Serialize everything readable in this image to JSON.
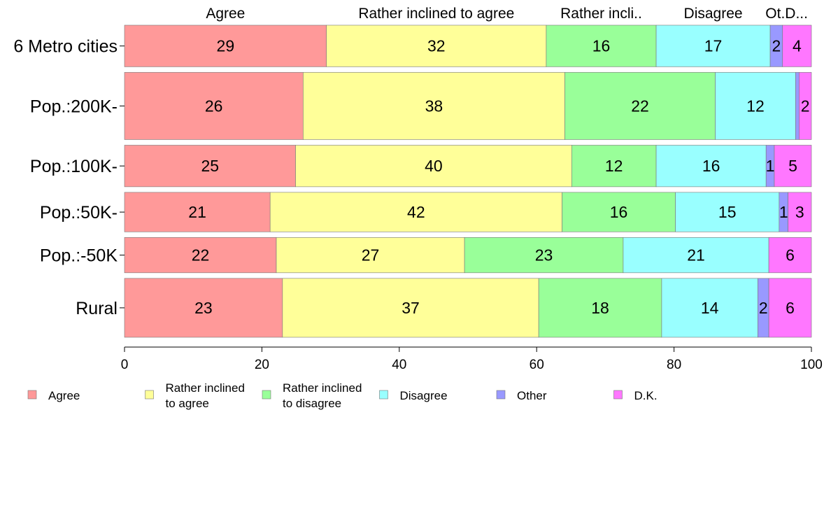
{
  "chart_data": {
    "type": "bar",
    "orientation": "horizontal",
    "stacked": true,
    "title": "",
    "xlabel": "",
    "ylabel": "",
    "xlim": [
      0,
      100
    ],
    "x_ticks": [
      0,
      20,
      40,
      60,
      80,
      100
    ],
    "grid": false,
    "legend_position": "bottom",
    "categories": [
      "6 Metro cities",
      "Pop.:200K-",
      "Pop.:100K-",
      "Pop.:50K-",
      "Pop.:-50K",
      "Rural"
    ],
    "bar_heights_relative": [
      0.6,
      0.97,
      0.6,
      0.57,
      0.51,
      0.85
    ],
    "top_labels": [
      "Agree",
      "Rather inclined to agree",
      "Rather incli..",
      "Disagree",
      "Ot.D..."
    ],
    "series": [
      {
        "name": "Agree",
        "legend_label": [
          "Agree"
        ],
        "color": "#ff9999",
        "values": [
          29.4,
          26.0,
          24.9,
          21.2,
          22.1,
          23.0
        ],
        "labels": [
          "29",
          "26",
          "25",
          "21",
          "22",
          "23"
        ]
      },
      {
        "name": "Rather inclined to agree",
        "legend_label": [
          "Rather inclined",
          "to agree"
        ],
        "color": "#ffff99",
        "values": [
          32.0,
          38.1,
          40.2,
          42.5,
          27.4,
          37.3
        ],
        "labels": [
          "32",
          "38",
          "40",
          "42",
          "27",
          "37"
        ]
      },
      {
        "name": "Rather inclined to disagree",
        "legend_label": [
          "Rather inclined",
          "to disagree"
        ],
        "color": "#99ff99",
        "values": [
          16.0,
          21.9,
          12.3,
          16.5,
          23.1,
          17.9
        ],
        "labels": [
          "16",
          "22",
          "12",
          "16",
          "23",
          "18"
        ]
      },
      {
        "name": "Disagree",
        "legend_label": [
          "Disagree"
        ],
        "color": "#99ffff",
        "values": [
          16.6,
          11.7,
          16.0,
          15.1,
          21.2,
          14.0
        ],
        "labels": [
          "17",
          "12",
          "16",
          "15",
          "21",
          "14"
        ]
      },
      {
        "name": "Other",
        "legend_label": [
          "Other"
        ],
        "color": "#9999ff",
        "values": [
          1.8,
          0.5,
          1.2,
          1.3,
          0.0,
          1.6
        ],
        "labels": [
          "2",
          "",
          "1",
          "1",
          "",
          "2"
        ]
      },
      {
        "name": "D.K.",
        "legend_label": [
          "D.K."
        ],
        "color": "#ff77ff",
        "values": [
          4.2,
          1.8,
          5.4,
          3.4,
          6.2,
          6.2
        ],
        "labels": [
          "4",
          "2",
          "5",
          "3",
          "6",
          "6"
        ]
      }
    ]
  }
}
